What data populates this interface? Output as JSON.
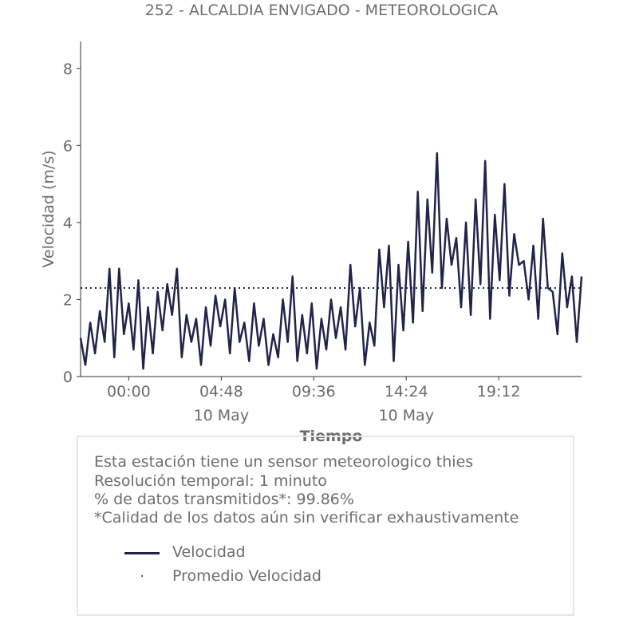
{
  "title": "252 - ALCALDIA ENVIGADO - METEOROLOGICA",
  "chart_data": {
    "type": "line",
    "xlabel": "Tiempo",
    "ylabel": "Velocidad (m/s)",
    "ylim": [
      0,
      8.7
    ],
    "yticks": [
      0,
      2,
      4,
      6,
      8
    ],
    "xrange": [
      "2019-05-09T21:30",
      "2019-05-10T23:30"
    ],
    "xticks": [
      {
        "x": "2019-05-10T00:00",
        "label": "00:00",
        "sublabel": ""
      },
      {
        "x": "2019-05-10T04:48",
        "label": "04:48",
        "sublabel": "10 May"
      },
      {
        "x": "2019-05-10T09:36",
        "label": "09:36",
        "sublabel": ""
      },
      {
        "x": "2019-05-10T14:24",
        "label": "14:24",
        "sublabel": "10 May"
      },
      {
        "x": "2019-05-10T19:12",
        "label": "19:12",
        "sublabel": ""
      }
    ],
    "grid": false,
    "series": [
      {
        "name": "Velocidad",
        "style": "solid",
        "color": "#22234a",
        "points": [
          [
            "2019-05-09T21:30",
            1.0
          ],
          [
            "2019-05-09T21:45",
            0.3
          ],
          [
            "2019-05-09T22:00",
            1.4
          ],
          [
            "2019-05-09T22:15",
            0.6
          ],
          [
            "2019-05-09T22:30",
            1.7
          ],
          [
            "2019-05-09T22:45",
            0.9
          ],
          [
            "2019-05-09T23:00",
            2.8
          ],
          [
            "2019-05-09T23:15",
            0.5
          ],
          [
            "2019-05-09T23:30",
            2.8
          ],
          [
            "2019-05-09T23:45",
            1.1
          ],
          [
            "2019-05-10T00:00",
            1.9
          ],
          [
            "2019-05-10T00:15",
            0.7
          ],
          [
            "2019-05-10T00:30",
            2.5
          ],
          [
            "2019-05-10T00:45",
            0.2
          ],
          [
            "2019-05-10T01:00",
            1.8
          ],
          [
            "2019-05-10T01:15",
            0.6
          ],
          [
            "2019-05-10T01:30",
            2.2
          ],
          [
            "2019-05-10T01:45",
            1.2
          ],
          [
            "2019-05-10T02:00",
            2.4
          ],
          [
            "2019-05-10T02:15",
            1.6
          ],
          [
            "2019-05-10T02:30",
            2.8
          ],
          [
            "2019-05-10T02:45",
            0.5
          ],
          [
            "2019-05-10T03:00",
            1.6
          ],
          [
            "2019-05-10T03:15",
            0.9
          ],
          [
            "2019-05-10T03:30",
            1.5
          ],
          [
            "2019-05-10T03:45",
            0.3
          ],
          [
            "2019-05-10T04:00",
            1.8
          ],
          [
            "2019-05-10T04:15",
            0.8
          ],
          [
            "2019-05-10T04:30",
            2.1
          ],
          [
            "2019-05-10T04:45",
            1.3
          ],
          [
            "2019-05-10T05:00",
            2.0
          ],
          [
            "2019-05-10T05:15",
            0.6
          ],
          [
            "2019-05-10T05:30",
            2.3
          ],
          [
            "2019-05-10T05:45",
            0.9
          ],
          [
            "2019-05-10T06:00",
            1.4
          ],
          [
            "2019-05-10T06:15",
            0.4
          ],
          [
            "2019-05-10T06:30",
            1.9
          ],
          [
            "2019-05-10T06:45",
            0.8
          ],
          [
            "2019-05-10T07:00",
            1.5
          ],
          [
            "2019-05-10T07:15",
            0.3
          ],
          [
            "2019-05-10T07:30",
            1.1
          ],
          [
            "2019-05-10T07:45",
            0.5
          ],
          [
            "2019-05-10T08:00",
            2.0
          ],
          [
            "2019-05-10T08:15",
            0.9
          ],
          [
            "2019-05-10T08:30",
            2.6
          ],
          [
            "2019-05-10T08:45",
            0.4
          ],
          [
            "2019-05-10T09:00",
            1.6
          ],
          [
            "2019-05-10T09:15",
            0.6
          ],
          [
            "2019-05-10T09:30",
            1.9
          ],
          [
            "2019-05-10T09:45",
            0.2
          ],
          [
            "2019-05-10T10:00",
            1.5
          ],
          [
            "2019-05-10T10:15",
            0.7
          ],
          [
            "2019-05-10T10:30",
            2.0
          ],
          [
            "2019-05-10T10:45",
            1.0
          ],
          [
            "2019-05-10T11:00",
            1.8
          ],
          [
            "2019-05-10T11:15",
            0.7
          ],
          [
            "2019-05-10T11:30",
            2.9
          ],
          [
            "2019-05-10T11:45",
            1.3
          ],
          [
            "2019-05-10T12:00",
            2.3
          ],
          [
            "2019-05-10T12:15",
            0.3
          ],
          [
            "2019-05-10T12:30",
            1.4
          ],
          [
            "2019-05-10T12:45",
            0.8
          ],
          [
            "2019-05-10T13:00",
            3.3
          ],
          [
            "2019-05-10T13:15",
            1.8
          ],
          [
            "2019-05-10T13:30",
            3.4
          ],
          [
            "2019-05-10T13:45",
            0.4
          ],
          [
            "2019-05-10T14:00",
            2.9
          ],
          [
            "2019-05-10T14:15",
            1.2
          ],
          [
            "2019-05-10T14:30",
            3.5
          ],
          [
            "2019-05-10T14:45",
            1.4
          ],
          [
            "2019-05-10T15:00",
            4.8
          ],
          [
            "2019-05-10T15:15",
            1.7
          ],
          [
            "2019-05-10T15:30",
            4.6
          ],
          [
            "2019-05-10T15:45",
            2.7
          ],
          [
            "2019-05-10T16:00",
            5.8
          ],
          [
            "2019-05-10T16:15",
            2.3
          ],
          [
            "2019-05-10T16:30",
            4.1
          ],
          [
            "2019-05-10T16:45",
            2.9
          ],
          [
            "2019-05-10T17:00",
            3.6
          ],
          [
            "2019-05-10T17:15",
            1.8
          ],
          [
            "2019-05-10T17:30",
            4.0
          ],
          [
            "2019-05-10T17:45",
            1.6
          ],
          [
            "2019-05-10T18:00",
            4.6
          ],
          [
            "2019-05-10T18:15",
            2.4
          ],
          [
            "2019-05-10T18:30",
            5.6
          ],
          [
            "2019-05-10T18:45",
            1.5
          ],
          [
            "2019-05-10T19:00",
            4.2
          ],
          [
            "2019-05-10T19:15",
            2.5
          ],
          [
            "2019-05-10T19:30",
            5.0
          ],
          [
            "2019-05-10T19:45",
            2.1
          ],
          [
            "2019-05-10T20:00",
            3.7
          ],
          [
            "2019-05-10T20:15",
            2.9
          ],
          [
            "2019-05-10T20:30",
            3.0
          ],
          [
            "2019-05-10T20:45",
            2.0
          ],
          [
            "2019-05-10T21:00",
            3.4
          ],
          [
            "2019-05-10T21:15",
            1.5
          ],
          [
            "2019-05-10T21:30",
            4.1
          ],
          [
            "2019-05-10T21:45",
            2.3
          ],
          [
            "2019-05-10T22:00",
            2.2
          ],
          [
            "2019-05-10T22:15",
            1.1
          ],
          [
            "2019-05-10T22:30",
            3.2
          ],
          [
            "2019-05-10T22:45",
            1.8
          ],
          [
            "2019-05-10T23:00",
            2.6
          ],
          [
            "2019-05-10T23:15",
            0.9
          ],
          [
            "2019-05-10T23:30",
            2.6
          ]
        ]
      },
      {
        "name": "Promedio Velocidad",
        "style": "dotted",
        "color": "#22234a",
        "points": [
          [
            "2019-05-09T21:30",
            2.3
          ],
          [
            "2019-05-10T23:30",
            2.3
          ]
        ]
      }
    ]
  },
  "info": {
    "line1": "Esta estación tiene un sensor meteorologico thies",
    "line2": "Resolución temporal: 1 minuto",
    "line3": "% de datos transmitidos*: 99.86%",
    "line4": "*Calidad de los datos aún sin verificar exhaustivamente"
  },
  "legend": {
    "entry1": "Velocidad",
    "entry2": "Promedio Velocidad"
  }
}
